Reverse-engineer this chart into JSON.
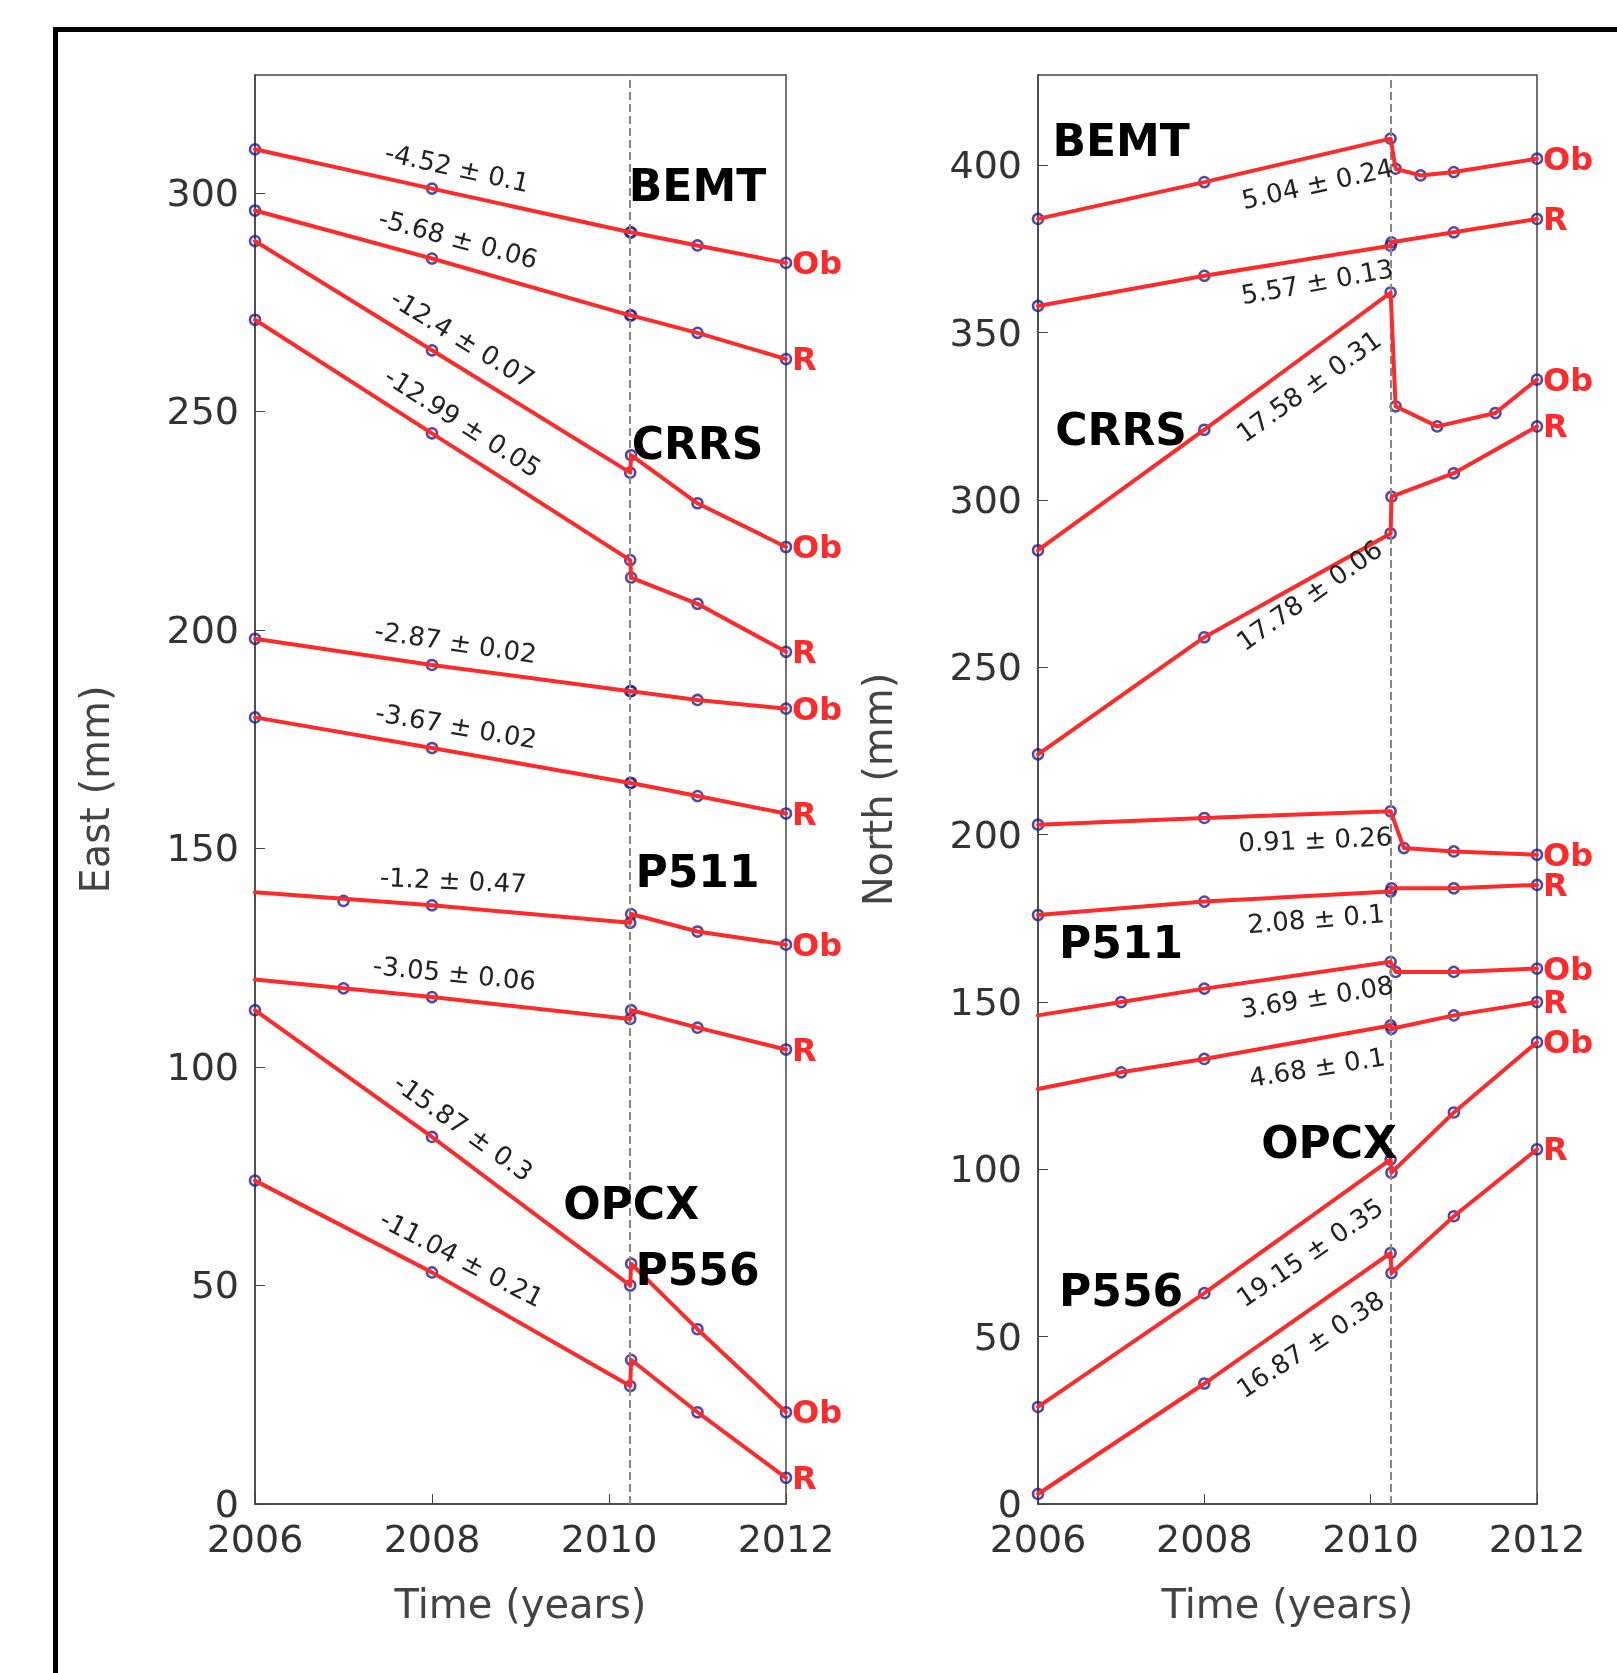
{
  "chart_data": [
    {
      "type": "line",
      "xlabel": "Time (years)",
      "ylabel": "East (mm)",
      "xlim": [
        2006,
        2012
      ],
      "ylim": [
        0,
        327
      ],
      "xticks": [
        2006,
        2008,
        2010,
        2012
      ],
      "yticks": [
        0,
        50,
        100,
        150,
        200,
        250,
        300
      ],
      "grid": false,
      "legend": false,
      "marker": "circle",
      "line_style": "solid",
      "x": [
        2006,
        2008,
        2010.24,
        2010.25,
        2011,
        2012
      ],
      "series": [
        {
          "type": "scatter",
          "color": "#2b1a8c",
          "values": [
            310,
            301,
            291,
            291,
            288,
            284
          ]
        },
        {
          "name": "Ob",
          "marker": "none",
          "color": "#ff2a2a",
          "values": [
            310,
            301,
            291,
            291,
            288,
            284
          ]
        },
        {
          "type": "scatter",
          "color": "#2b1a8c",
          "values": [
            296,
            285,
            272,
            272,
            268,
            262
          ]
        },
        {
          "name": "R",
          "marker": "none",
          "color": "#ff2a2a",
          "values": [
            296,
            285,
            272,
            272,
            268,
            262
          ]
        },
        {
          "type": "scatter",
          "color": "#2b1a8c",
          "values": [
            289,
            264,
            236,
            240,
            229,
            219
          ]
        },
        {
          "name": "Ob",
          "marker": "none",
          "color": "#ff2a2a",
          "values": [
            289,
            264,
            236,
            240,
            229,
            219
          ]
        },
        {
          "type": "scatter",
          "color": "#2b1a8c",
          "values": [
            271,
            245,
            216,
            212,
            206,
            195
          ]
        },
        {
          "name": "R",
          "marker": "none",
          "color": "#ff2a2a",
          "values": [
            271,
            245,
            216,
            212,
            206,
            195
          ]
        },
        {
          "type": "scatter",
          "color": "#2b1a8c",
          "values": [
            198,
            192,
            186,
            186,
            184,
            182
          ]
        },
        {
          "name": "Ob",
          "marker": "none",
          "color": "#ff2a2a",
          "values": [
            198,
            192,
            186,
            186,
            184,
            182
          ]
        },
        {
          "type": "scatter",
          "color": "#2b1a8c",
          "values": [
            180,
            173,
            165,
            165,
            162,
            158
          ]
        },
        {
          "name": "R",
          "marker": "none",
          "color": "#ff2a2a",
          "values": [
            180,
            173,
            165,
            165,
            162,
            158
          ]
        },
        {
          "type": "scatter",
          "color": "#2b1a8c",
          "x": [
            2007,
            2008,
            2010.24,
            2010.25,
            2011,
            2012
          ],
          "values": [
            138,
            137,
            133,
            135,
            131,
            128
          ]
        },
        {
          "name": "Ob",
          "marker": "none",
          "color": "#ff2a2a",
          "values": [
            140,
            137,
            133,
            135,
            131,
            128
          ]
        },
        {
          "type": "scatter",
          "color": "#2b1a8c",
          "x": [
            2007,
            2008,
            2010.24,
            2010.25,
            2011,
            2012
          ],
          "values": [
            118,
            116,
            111,
            113,
            109,
            104
          ]
        },
        {
          "name": "R",
          "marker": "none",
          "color": "#ff2a2a",
          "values": [
            120,
            116,
            111,
            113,
            109,
            104
          ]
        },
        {
          "type": "scatter",
          "color": "#2b1a8c",
          "values": [
            113,
            84,
            50,
            55,
            40,
            21
          ]
        },
        {
          "name": "Ob",
          "marker": "none",
          "color": "#ff2a2a",
          "values": [
            113,
            84,
            50,
            55,
            40,
            21
          ]
        },
        {
          "type": "scatter",
          "color": "#2b1a8c",
          "values": [
            74,
            53,
            27,
            33,
            21,
            6
          ]
        },
        {
          "name": "R",
          "marker": "none",
          "color": "#ff2a2a",
          "values": [
            74,
            53,
            27,
            33,
            21,
            6
          ]
        }
      ],
      "ref_lines": [
        {
          "axis": "x",
          "value": 2010.24,
          "color": "#888888",
          "line_style": "dashed"
        }
      ],
      "annotations": [
        {
          "text": "-4.52 ± 0.1",
          "x": 2008,
          "y": 301
        },
        {
          "text": "-5.68 ± 0.06",
          "x": 2008,
          "y": 285
        },
        {
          "text": "-12.4 ± 0.07",
          "x": 2008,
          "y": 264
        },
        {
          "text": "-12.99 ± 0.05",
          "x": 2008,
          "y": 245
        },
        {
          "text": "-2.87 ± 0.02",
          "x": 2008,
          "y": 192
        },
        {
          "text": "-3.67 ± 0.02",
          "x": 2008,
          "y": 173
        },
        {
          "text": "-1.2 ± 0.47",
          "x": 2008,
          "y": 137
        },
        {
          "text": "-3.05 ± 0.06",
          "x": 2008,
          "y": 116
        },
        {
          "text": "-15.87 ± 0.3",
          "x": 2008,
          "y": 84
        },
        {
          "text": "-11.04 ± 0.21",
          "x": 2008,
          "y": 53
        },
        {
          "text": "BEMT",
          "x": 2011,
          "y": 288
        },
        {
          "text": "CRRS",
          "x": 2011,
          "y": 229
        },
        {
          "text": "P511",
          "x": 2011,
          "y": 131
        },
        {
          "text": "OPCX",
          "x": 2010.25,
          "y": 55
        },
        {
          "text": "P556",
          "x": 2011,
          "y": 40
        }
      ]
    },
    {
      "type": "line",
      "xlabel": "Time (years)",
      "ylabel": "North (mm)",
      "xlim": [
        2006,
        2012
      ],
      "ylim": [
        0,
        427
      ],
      "xticks": [
        2006,
        2008,
        2010,
        2012
      ],
      "yticks": [
        0,
        50,
        100,
        150,
        200,
        250,
        300,
        350,
        400
      ],
      "grid": false,
      "legend": false,
      "marker": "circle",
      "line_style": "solid",
      "x": [
        2006,
        2008,
        2010.24,
        2010.25,
        2011,
        2012
      ],
      "series": [
        {
          "type": "scatter",
          "color": "#2b1a8c",
          "x": [
            2006,
            2008,
            2010.24,
            2010.3,
            2010.6,
            2011,
            2012
          ],
          "values": [
            384,
            395,
            408,
            399,
            397,
            398,
            402
          ]
        },
        {
          "name": "Ob",
          "marker": "none",
          "color": "#ff2a2a",
          "x": [
            2006,
            2008,
            2010.24,
            2010.3,
            2010.6,
            2011,
            2012
          ],
          "values": [
            384,
            395,
            408,
            399,
            397,
            398,
            402
          ]
        },
        {
          "type": "scatter",
          "color": "#2b1a8c",
          "values": [
            358,
            367,
            376,
            377,
            380,
            384
          ]
        },
        {
          "name": "R",
          "marker": "none",
          "color": "#ff2a2a",
          "values": [
            358,
            367,
            376,
            377,
            380,
            384
          ]
        },
        {
          "type": "scatter",
          "color": "#2b1a8c",
          "x": [
            2006,
            2008,
            2010.24,
            2010.3,
            2010.8,
            2011.5,
            2012
          ],
          "values": [
            285,
            321,
            362,
            328,
            322,
            326,
            336
          ]
        },
        {
          "name": "Ob",
          "marker": "none",
          "color": "#ff2a2a",
          "x": [
            2006,
            2008,
            2010.24,
            2010.3,
            2010.8,
            2011.5,
            2012
          ],
          "values": [
            285,
            321,
            362,
            328,
            322,
            326,
            336
          ]
        },
        {
          "type": "scatter",
          "color": "#2b1a8c",
          "values": [
            224,
            259,
            290,
            301,
            308,
            322
          ]
        },
        {
          "name": "R",
          "marker": "none",
          "color": "#ff2a2a",
          "values": [
            224,
            259,
            290,
            301,
            308,
            322
          ]
        },
        {
          "type": "scatter",
          "color": "#2b1a8c",
          "x": [
            2006,
            2008,
            2010.24,
            2010.4,
            2011,
            2012
          ],
          "values": [
            203,
            205,
            207,
            196,
            195,
            194
          ]
        },
        {
          "name": "Ob",
          "marker": "none",
          "color": "#ff2a2a",
          "x": [
            2006,
            2008,
            2010.24,
            2010.4,
            2011,
            2012
          ],
          "values": [
            203,
            205,
            207,
            196,
            195,
            194
          ]
        },
        {
          "type": "scatter",
          "color": "#2b1a8c",
          "values": [
            176,
            180,
            183,
            184,
            184,
            185
          ]
        },
        {
          "name": "R",
          "marker": "none",
          "color": "#ff2a2a",
          "values": [
            176,
            180,
            183,
            184,
            184,
            185
          ]
        },
        {
          "type": "scatter",
          "color": "#2b1a8c",
          "x": [
            2007,
            2008,
            2010.24,
            2010.3,
            2011,
            2012
          ],
          "values": [
            150,
            154,
            162,
            159,
            159,
            160
          ]
        },
        {
          "name": "Ob",
          "marker": "none",
          "color": "#ff2a2a",
          "x": [
            2006,
            2007,
            2008,
            2010.24,
            2010.3,
            2011,
            2012
          ],
          "values": [
            146,
            150,
            154,
            162,
            159,
            159,
            160
          ]
        },
        {
          "type": "scatter",
          "color": "#2b1a8c",
          "x": [
            2007,
            2008,
            2010.24,
            2010.25,
            2011,
            2012
          ],
          "values": [
            129,
            133,
            143,
            142,
            146,
            150
          ]
        },
        {
          "name": "R",
          "marker": "none",
          "color": "#ff2a2a",
          "x": [
            2006,
            2007,
            2008,
            2010.24,
            2010.25,
            2011,
            2012
          ],
          "values": [
            124,
            129,
            133,
            143,
            142,
            146,
            150
          ]
        },
        {
          "type": "scatter",
          "color": "#2b1a8c",
          "values": [
            29,
            63,
            103,
            99,
            117,
            138
          ]
        },
        {
          "name": "Ob",
          "marker": "none",
          "color": "#ff2a2a",
          "values": [
            29,
            63,
            103,
            99,
            117,
            138
          ]
        },
        {
          "type": "scatter",
          "color": "#2b1a8c",
          "values": [
            3,
            36,
            75,
            69,
            86,
            106
          ]
        },
        {
          "name": "R",
          "marker": "none",
          "color": "#ff2a2a",
          "values": [
            3,
            36,
            75,
            69,
            86,
            106
          ]
        }
      ],
      "ref_lines": [
        {
          "axis": "x",
          "value": 2010.24,
          "color": "#888888",
          "line_style": "dashed"
        }
      ],
      "annotations": [
        {
          "text": "5.04 ± 0.24",
          "x": 2008,
          "y": 395
        },
        {
          "text": "5.57 ± 0.13",
          "x": 2008,
          "y": 367
        },
        {
          "text": "17.58 ± 0.31",
          "x": 2008,
          "y": 321
        },
        {
          "text": "17.78 ± 0.06",
          "x": 2008,
          "y": 259
        },
        {
          "text": "0.91 ± 0.26",
          "x": 2008,
          "y": 205
        },
        {
          "text": "2.08 ± 0.1",
          "x": 2008,
          "y": 180
        },
        {
          "text": "3.69 ± 0.08",
          "x": 2008,
          "y": 154
        },
        {
          "text": "4.68 ± 0.1",
          "x": 2008,
          "y": 133
        },
        {
          "text": "19.15 ± 0.35",
          "x": 2008,
          "y": 63
        },
        {
          "text": "16.87 ± 0.38",
          "x": 2008,
          "y": 36
        },
        {
          "text": "BEMT",
          "x": 2007,
          "y": 389.5
        },
        {
          "text": "CRRS",
          "x": 2007,
          "y": 303
        },
        {
          "text": "P511",
          "x": 2007,
          "y": 150
        },
        {
          "text": "OPCX",
          "x": 2009.5,
          "y": 90
        },
        {
          "text": "P556",
          "x": 2007,
          "y": 46
        }
      ]
    }
  ]
}
